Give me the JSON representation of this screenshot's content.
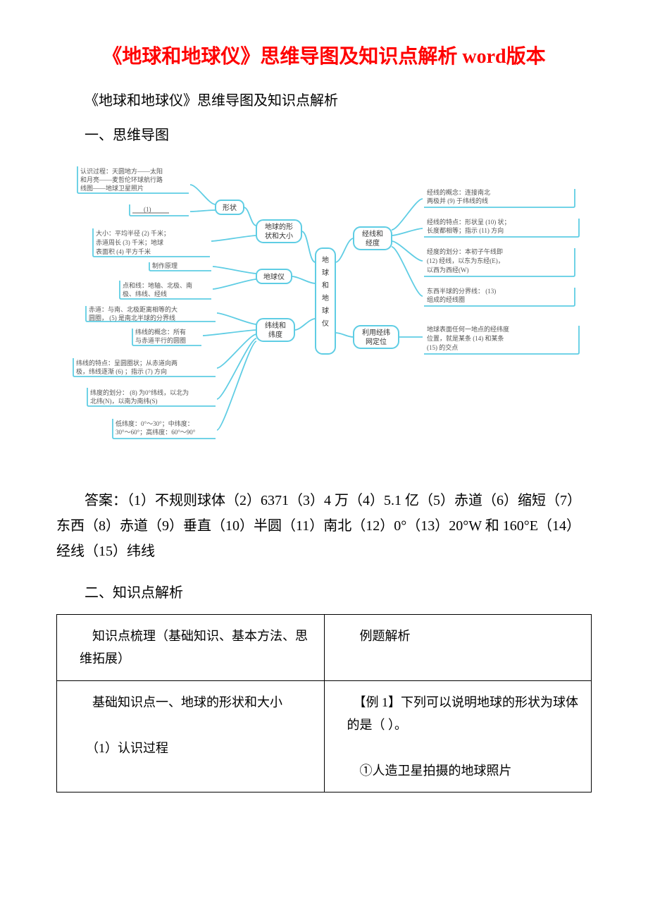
{
  "title": "《地球和地球仪》思维导图及知识点解析 word版本",
  "subtitle": "《地球和地球仪》思维导图及知识点解析",
  "section1_heading": "一、思维导图",
  "answers": "答案：（1）不规则球体（2）6371（3）4 万（4）5.1 亿（5）赤道（6）缩短（7）东西（8）赤道（9）垂直（10）半圆（11）南北（12）0°（13）20°W 和 160°E（14）经线（15）纬线",
  "section2_heading": "二、知识点解析",
  "table": {
    "r1c1": "　知识点梳理（基础知识、基本方法、思维拓展）",
    "r1c2": "　例题解析",
    "r2c1a": "　基础知识点一、地球的形状和大小",
    "r2c1b": "　（1）认识过程",
    "r2c2a": "　【例 1】下列可以说明地球的形状为球体的是（ ）。",
    "r2c2b": "　①人造卫星拍摄的地球照片"
  },
  "diagram": {
    "center": "地球和地球仪",
    "n_shape": "地球的形状和大小",
    "n_globe": "地球仪",
    "n_lat": "纬线和纬度",
    "n_lon": "经线和经度",
    "n_grid": "利用经纬网定位",
    "n_xz": "形状",
    "l_recognize1": "认识过程：天圆地方——太阳",
    "l_recognize2": "和月亮——麦哲伦环球航行路",
    "l_recognize3": "线图——地球卫星照片",
    "l_blank1": "(1)",
    "l_size1": "大小：平均半径  (2)  千米；",
    "l_size2": "赤道周长  (3)  千米；地球",
    "l_size3": "表面积  (4)  平方千米",
    "l_make": "制作原理",
    "l_points1": "点和线：地轴、北极、南",
    "l_points2": "极、纬线、经线",
    "l_equator1": "赤道：与南、北极距离相等的大",
    "l_equator2": "圆圈，  (5)  是南北半球的分界线",
    "l_latdef1": "纬线的概念：所有",
    "l_latdef2": "与赤道平行的圆圈",
    "l_latfeat1": "纬线的特点：呈圆圈状；从赤道向两",
    "l_latfeat2": "极，纬线逐渐  (6)  ；指示  (7)  方向",
    "l_latdiv1": "纬度的划分：  (8)  为0°纬线，以北为",
    "l_latdiv2": "北纬(N)，以南为南纬(S)",
    "l_latrange1": "低纬度：0°～30°；中纬度：",
    "l_latrange2": "30°～60°；高纬度：60°～90°",
    "r_londef1": "经线的概念：连接南北",
    "r_londef2": "两极并  (9)  于纬线的线",
    "r_lonfeat1": "经线的特点：形状呈  (10)  状；",
    "r_lonfeat2": "长度都相等；指示  (11)  方向",
    "r_londiv1": "经度的划分：本初子午线即",
    "r_londiv2": "  (12)  经线，以东为东经(E)，",
    "r_londiv3": "以西为西经(W)",
    "r_ew1": "东西半球的分界线：  (13)  ",
    "r_ew2": "组成的经线圈",
    "r_grid1": "地球表面任何一地点的经纬度",
    "r_grid2": "位置，就是某条  (14)  和某条",
    "r_grid3": "  (15)  的交点"
  }
}
